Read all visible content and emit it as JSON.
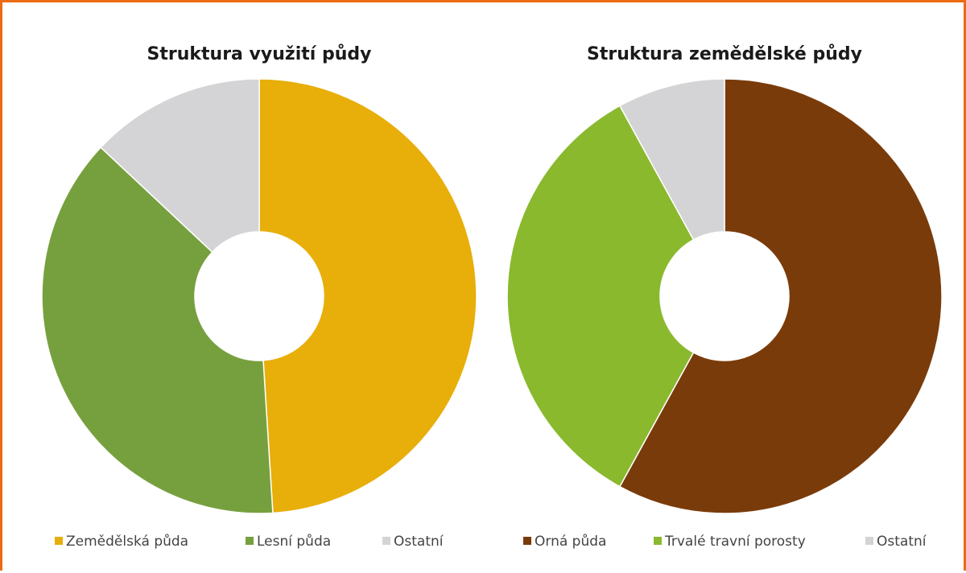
{
  "chart_data": [
    {
      "type": "donut",
      "title": "Struktura využití půdy",
      "categories": [
        "Zemědělská půda",
        "Lesní půda",
        "Ostatní"
      ],
      "values": [
        49,
        38,
        13
      ],
      "colors": [
        "#e8ae0a",
        "#76a03e",
        "#d4d4d6"
      ]
    },
    {
      "type": "donut",
      "title": "Struktura zemědělské půdy",
      "categories": [
        "Orná půda",
        "Trvalé travní porosty",
        "Ostatní"
      ],
      "values": [
        58,
        34,
        8
      ],
      "colors": [
        "#7a3b0a",
        "#8ab92e",
        "#d4d4d6"
      ]
    }
  ]
}
